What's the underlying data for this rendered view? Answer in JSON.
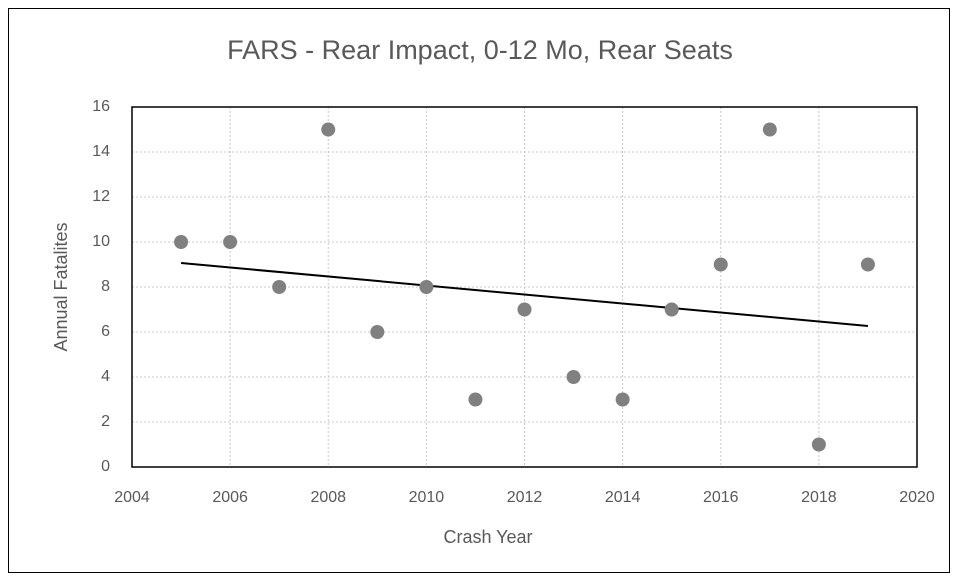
{
  "chart_data": {
    "type": "scatter",
    "title": "FARS - Rear Impact, 0-12 Mo, Rear Seats",
    "x_label": "Crash Year",
    "y_label": "Annual Fatalites",
    "series": [
      {
        "color": "#808080",
        "x": [
          2005,
          2006,
          2007,
          2008,
          2009,
          2010,
          2011,
          2012,
          2013,
          2014,
          2015,
          2016,
          2017,
          2018,
          2019
        ],
        "values": [
          10,
          10,
          8,
          15,
          6,
          8,
          3,
          7,
          4,
          3,
          7,
          9,
          15,
          1,
          9
        ]
      }
    ],
    "xlim": [
      2004,
      2020
    ],
    "xticks": [
      2004,
      2006,
      2008,
      2010,
      2012,
      2014,
      2016,
      2018,
      2020
    ],
    "ylim": [
      0,
      16
    ],
    "yticks": [
      0,
      2,
      4,
      6,
      8,
      10,
      12,
      14,
      16
    ],
    "grid": true,
    "trendline": "linear",
    "trendline_color": "#000000"
  }
}
